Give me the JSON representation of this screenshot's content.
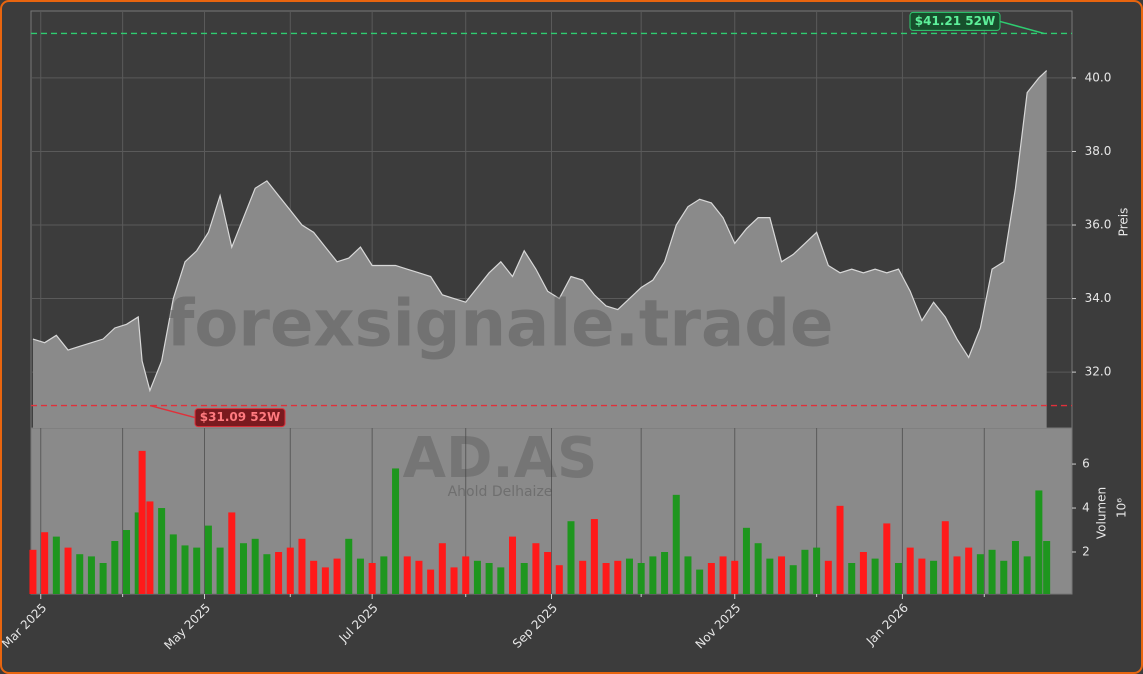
{
  "chart_data": {
    "type": "area",
    "watermark": "forexsignale.trade",
    "symbol": "AD.AS",
    "name": "Ahold Delhaize",
    "ylabel": "Preis",
    "color": "#8a8a8a",
    "line_color": "#d8d8d8",
    "grid": true,
    "x": [
      0,
      3,
      6,
      9,
      12,
      15,
      18,
      21,
      24,
      27,
      28,
      30,
      33,
      36,
      39,
      42,
      45,
      48,
      51,
      54,
      57,
      60,
      63,
      66,
      69,
      72,
      75,
      78,
      81,
      84,
      87,
      90,
      93,
      96,
      99,
      102,
      105,
      108,
      111,
      114,
      117,
      120,
      123,
      126,
      129,
      132,
      135,
      138,
      141,
      144,
      147,
      150,
      153,
      156,
      159,
      162,
      165,
      168,
      171,
      174,
      177,
      180,
      183,
      186,
      189,
      192,
      195,
      198,
      201,
      204,
      207,
      210,
      213,
      216,
      219,
      222,
      225,
      228,
      231,
      234,
      237,
      240,
      243,
      246,
      249,
      252,
      255,
      258,
      260
    ],
    "values": [
      32.9,
      32.8,
      33.0,
      32.6,
      32.7,
      32.8,
      32.9,
      33.2,
      33.3,
      33.5,
      32.3,
      31.5,
      32.3,
      34.0,
      35.0,
      35.3,
      35.8,
      36.8,
      35.4,
      36.2,
      37.0,
      37.2,
      36.8,
      36.4,
      36.0,
      35.8,
      35.4,
      35.0,
      35.1,
      35.4,
      34.9,
      34.9,
      34.9,
      34.8,
      34.7,
      34.6,
      34.1,
      34.0,
      33.9,
      34.3,
      34.7,
      35.0,
      34.6,
      35.3,
      34.8,
      34.2,
      34.0,
      34.6,
      34.5,
      34.1,
      33.8,
      33.7,
      34.0,
      34.3,
      34.5,
      35.0,
      36.0,
      36.5,
      36.7,
      36.6,
      36.2,
      35.5,
      35.9,
      36.2,
      36.2,
      35.0,
      35.2,
      35.5,
      35.8,
      34.9,
      34.7,
      34.8,
      34.7,
      34.8,
      34.7,
      34.8,
      34.2,
      33.4,
      33.9,
      33.5,
      32.9,
      32.4,
      33.2,
      34.8,
      35.0,
      37.0,
      39.6,
      40.0,
      40.2
    ],
    "xlim": [
      -0.5,
      266.5
    ],
    "xticks": [
      {
        "value": 2,
        "label": "Mar 2025"
      },
      {
        "value": 44,
        "label": "May 2025"
      },
      {
        "value": 87,
        "label": "Jul 2025"
      },
      {
        "value": 133,
        "label": "Sep 2025"
      },
      {
        "value": 180,
        "label": "Nov 2025"
      },
      {
        "value": 223,
        "label": "Jan 2026"
      }
    ],
    "xminorticks": [
      23,
      66,
      111,
      156,
      201,
      244
    ],
    "ylim": [
      30.48,
      41.82
    ],
    "yticks": [
      {
        "value": 32,
        "label": "32.0"
      },
      {
        "value": 34,
        "label": "34.0"
      },
      {
        "value": 36,
        "label": "36.0"
      },
      {
        "value": 38,
        "label": "38.0"
      },
      {
        "value": 40,
        "label": "40.0"
      }
    ],
    "high": {
      "value": 41.21,
      "label": "$41.21 52W",
      "color": "#2ecc71"
    },
    "low": {
      "value": 31.09,
      "label": "$31.09 52W",
      "color": "#e0303a"
    },
    "volume": {
      "type": "bar",
      "ylabel": "Volumen",
      "scale_label": "10⁶",
      "up_color": "#1e961e",
      "down_color": "#ff1a1a",
      "values": [
        2.1,
        2.9,
        2.7,
        2.2,
        1.9,
        1.8,
        1.5,
        2.5,
        3.0,
        3.8,
        6.6,
        4.3,
        4.0,
        2.8,
        2.3,
        2.2,
        3.2,
        2.2,
        3.8,
        2.4,
        2.6,
        1.9,
        2.0,
        2.2,
        2.6,
        1.6,
        1.3,
        1.7,
        2.6,
        1.7,
        1.5,
        1.8,
        5.8,
        1.8,
        1.6,
        1.2,
        2.4,
        1.3,
        1.8,
        1.6,
        1.5,
        1.3,
        2.7,
        1.5,
        2.4,
        2.0,
        1.4,
        3.4,
        1.6,
        3.5,
        1.5,
        1.6,
        1.7,
        1.5,
        1.8,
        2.0,
        4.6,
        1.8,
        1.2,
        1.5,
        1.8,
        1.6,
        3.1,
        2.4,
        1.7,
        1.8,
        1.4,
        2.1,
        2.2,
        1.6,
        4.1,
        1.5,
        2.0,
        1.7,
        3.3,
        1.5,
        2.2,
        1.7,
        1.6,
        3.4,
        1.8,
        2.2,
        1.9,
        2.1,
        1.6,
        2.5,
        1.8,
        4.8,
        2.5
      ],
      "ylim": [
        0.09,
        7.64
      ],
      "yticks": [
        2,
        4,
        6
      ]
    }
  }
}
